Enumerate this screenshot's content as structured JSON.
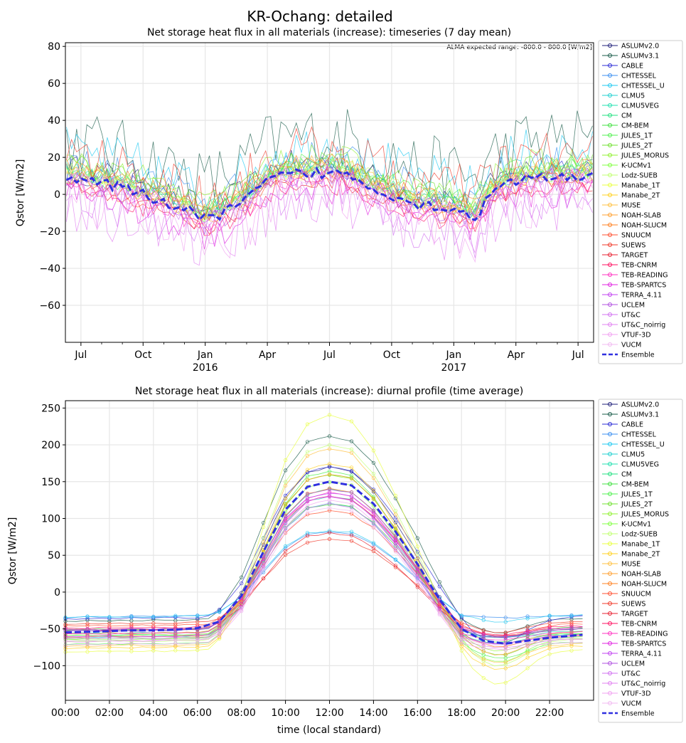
{
  "figure": {
    "title": "KR-Ochang: detailed",
    "range_note": "ALMA expected range: -800.0 - 800.0 [W/m2]"
  },
  "models": [
    "ASLUMv2.0",
    "ASLUMv3.1",
    "CABLE",
    "CHTESSEL",
    "CHTESSEL_U",
    "CLMU5",
    "CLMU5VEG",
    "CM",
    "CM-BEM",
    "JULES_1T",
    "JULES_2T",
    "JULES_MORUS",
    "K-UCMv1",
    "Lodz-SUEB",
    "Manabe_1T",
    "Manabe_2T",
    "MUSE",
    "NOAH-SLAB",
    "NOAH-SLUCM",
    "SNUUCM",
    "SUEWS",
    "TARGET",
    "TEB-CNRM",
    "TEB-READING",
    "TEB-SPARTCS",
    "TERRA_4.11",
    "UCLEM",
    "UT&C",
    "UT&C_noirrig",
    "VTUF-3D",
    "VUCM",
    "Ensemble"
  ],
  "colors": [
    "#1f1f7a",
    "#1a5c4a",
    "#2b2bd6",
    "#3b8ff0",
    "#1ec8f0",
    "#22d0d0",
    "#22e0b0",
    "#22e080",
    "#40e040",
    "#50f050",
    "#70e030",
    "#90f030",
    "#80ff40",
    "#c0ff70",
    "#e8ff40",
    "#ffd020",
    "#ffc040",
    "#ffa030",
    "#ff8020",
    "#ff5030",
    "#f03a2a",
    "#e82030",
    "#ff1060",
    "#ff30c0",
    "#e020e0",
    "#c040f0",
    "#b050e0",
    "#d070f0",
    "#e080f0",
    "#f0a0f0",
    "#f0b8f0",
    "#3030e0"
  ],
  "chart_data": [
    {
      "type": "line",
      "title": "Net storage heat flux in all materials (increase): timeseries (7 day mean)",
      "xlabel": "",
      "ylabel": "Qstor [W/m2]",
      "x_tick_labels": [
        {
          "label": "Jul",
          "sub": ""
        },
        {
          "label": "Oct",
          "sub": ""
        },
        {
          "label": "Jan",
          "sub": "2016"
        },
        {
          "label": "Apr",
          "sub": ""
        },
        {
          "label": "Jul",
          "sub": ""
        },
        {
          "label": "Oct",
          "sub": ""
        },
        {
          "label": "Jan",
          "sub": "2017"
        },
        {
          "label": "Apr",
          "sub": ""
        },
        {
          "label": "Jul",
          "sub": ""
        }
      ],
      "x_ticks_month_index": [
        1,
        4,
        7,
        10,
        13,
        16,
        19,
        22,
        25
      ],
      "xlim_month_index": [
        0.25,
        25.75
      ],
      "yticks": [
        -60,
        -40,
        -20,
        0,
        20,
        40,
        60,
        80
      ],
      "ylim": [
        -80,
        82
      ],
      "grid": true,
      "legend": "right",
      "ensemble_monthly": [
        9,
        8,
        6,
        3,
        0,
        -4,
        -8,
        -14,
        -9,
        -3,
        7,
        11,
        11,
        12,
        10,
        4,
        0,
        -5,
        -6,
        -8,
        -12,
        2,
        7,
        9,
        9,
        10
      ]
    },
    {
      "type": "line",
      "title": "Net storage heat flux in all materials (increase): diurnal profile (time average)",
      "xlabel": "time (local standard)",
      "ylabel": "Qstor [W/m2]",
      "x_tick_labels": [
        "00:00",
        "02:00",
        "04:00",
        "06:00",
        "08:00",
        "10:00",
        "12:00",
        "14:00",
        "16:00",
        "18:00",
        "20:00",
        "22:00"
      ],
      "x_ticks_hours": [
        0,
        2,
        4,
        6,
        8,
        10,
        12,
        14,
        16,
        18,
        20,
        22
      ],
      "xlim": [
        0,
        24
      ],
      "yticks": [
        -100,
        -50,
        0,
        50,
        100,
        150,
        200,
        250
      ],
      "ylim": [
        -147,
        260
      ],
      "grid": true,
      "legend": "right",
      "ensemble_x": [
        0,
        1,
        2,
        3,
        4,
        5,
        6,
        7,
        8,
        9,
        10,
        11,
        12,
        13,
        14,
        15,
        16,
        17,
        18,
        19,
        20,
        21,
        22,
        23.5
      ],
      "ensemble": [
        -55,
        -54,
        -53,
        -52,
        -52,
        -51,
        -49,
        -40,
        -5,
        55,
        112,
        143,
        150,
        145,
        120,
        82,
        38,
        -10,
        -50,
        -66,
        -70,
        -66,
        -62,
        -58
      ],
      "model_peak_at_noon": [
        170,
        212,
        170,
        82,
        84,
        120,
        130,
        140,
        120,
        165,
        160,
        160,
        150,
        200,
        240,
        175,
        195,
        160,
        140,
        110,
        72,
        80,
        130,
        135,
        130,
        135,
        140,
        120,
        130,
        125,
        115
      ]
    }
  ]
}
